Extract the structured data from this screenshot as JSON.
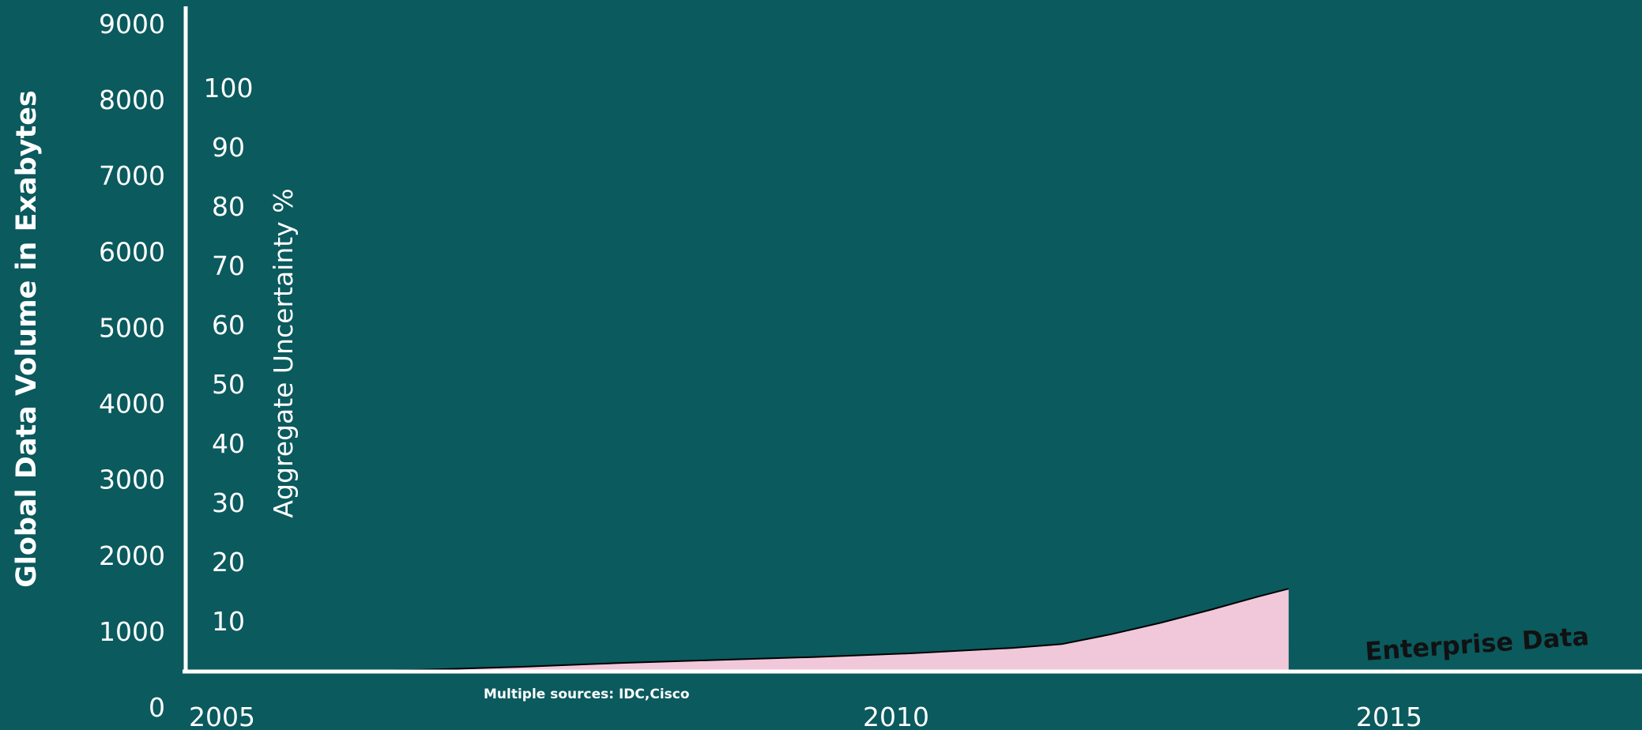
{
  "chart_data": {
    "type": "area",
    "title": "",
    "xlabel": "",
    "ylabel": "Global Data Volume in Exabytes",
    "y2label": "Aggregate Uncertainty %",
    "x_ticks": [
      "2005",
      "2010",
      "2015"
    ],
    "y_ticks": [
      "0",
      "1000",
      "2000",
      "3000",
      "4000",
      "5000",
      "6000",
      "7000",
      "8000",
      "9000"
    ],
    "y2_ticks": [
      "10",
      "20",
      "30",
      "40",
      "50",
      "60",
      "70",
      "80",
      "90",
      "100"
    ],
    "xlim": [
      2005,
      2015.8
    ],
    "ylim": [
      0,
      9000
    ],
    "grid": false,
    "series": [
      {
        "name": "Enterprise Data",
        "x": [
          2005.2,
          2006,
          2007,
          2008,
          2009,
          2010,
          2011,
          2012,
          2013,
          2013.5,
          2014,
          2014.5,
          2015,
          2015.5,
          2015.8
        ],
        "values": [
          430,
          450,
          480,
          520,
          570,
          610,
          650,
          700,
          770,
          820,
          950,
          1100,
          1270,
          1450,
          1550
        ]
      }
    ],
    "colors": {
      "background": "#0a5a5e",
      "area_fill": "#f0c8da",
      "area_line": "#000000",
      "axis": "#ffffff"
    },
    "annotation": "Multiple sources: IDC,Cisco"
  }
}
